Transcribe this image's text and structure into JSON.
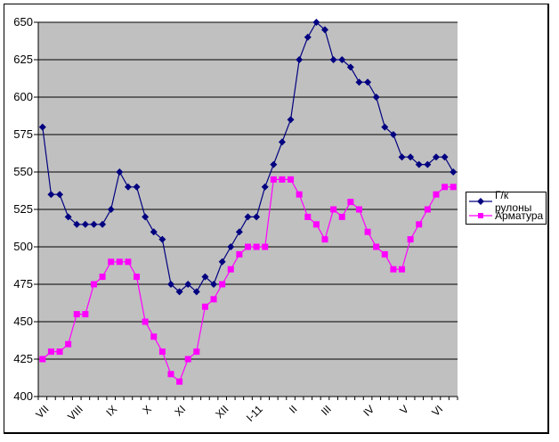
{
  "chart_data": {
    "type": "line",
    "title": "",
    "xlabel": "",
    "ylabel": "",
    "ylim": [
      400,
      650
    ],
    "y_ticks": [
      650,
      625,
      600,
      575,
      550,
      525,
      500,
      475,
      450,
      425,
      400
    ],
    "x_month_labels": [
      "VII",
      "VIII",
      "IX",
      "X",
      "XI",
      "XII",
      "I-11",
      "II",
      "III",
      "IV",
      "V",
      "VI"
    ],
    "x_month_start_index": [
      0,
      4,
      8,
      12,
      16,
      21,
      25,
      29,
      33,
      38,
      42,
      46
    ],
    "grid": true,
    "legend_position": "right",
    "plot_bg_color": "#C0C0C0",
    "gridline_color": "#000000",
    "series": [
      {
        "name": "Г/к рулоны",
        "color": "#000080",
        "marker": "diamond",
        "values": [
          580,
          535,
          535,
          520,
          515,
          515,
          515,
          515,
          525,
          550,
          540,
          540,
          520,
          510,
          505,
          475,
          470,
          475,
          470,
          480,
          475,
          490,
          500,
          510,
          520,
          520,
          540,
          555,
          570,
          585,
          625,
          640,
          650,
          645,
          625,
          625,
          620,
          610,
          610,
          600,
          580,
          575,
          560,
          560,
          555,
          555,
          560,
          560,
          550
        ]
      },
      {
        "name": "Арматура",
        "color": "#FF00FF",
        "marker": "square",
        "values": [
          425,
          430,
          430,
          435,
          455,
          455,
          475,
          480,
          490,
          490,
          490,
          480,
          450,
          440,
          430,
          415,
          410,
          425,
          430,
          460,
          465,
          475,
          485,
          495,
          500,
          500,
          500,
          545,
          545,
          545,
          535,
          520,
          515,
          505,
          525,
          520,
          530,
          525,
          510,
          500,
          495,
          485,
          485,
          505,
          515,
          525,
          535,
          540,
          540
        ]
      }
    ]
  }
}
